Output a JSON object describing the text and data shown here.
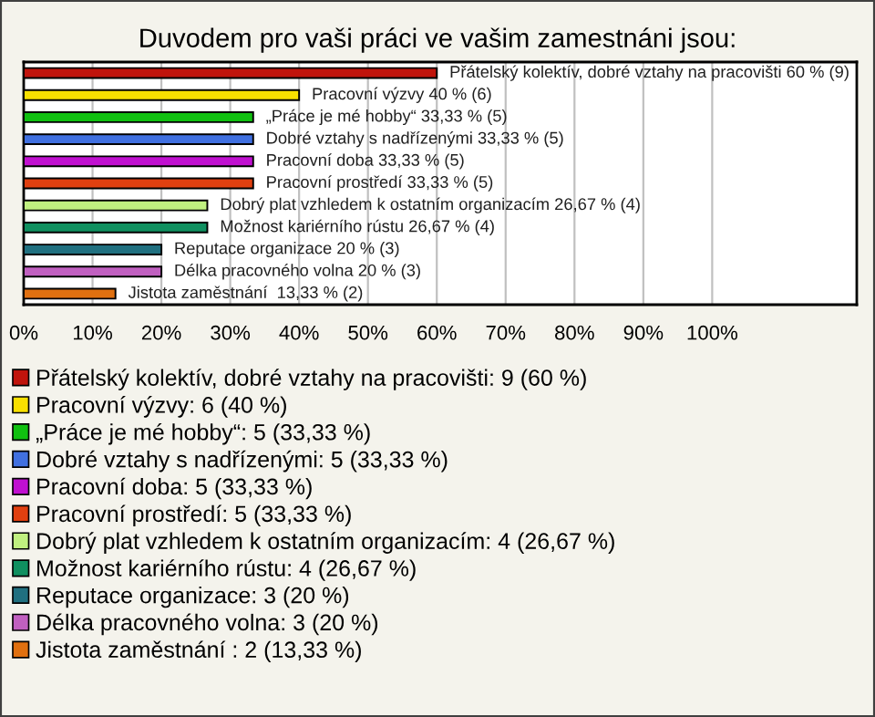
{
  "chart_data": {
    "type": "bar",
    "orientation": "horizontal",
    "title": "Duvodem pro vaši práci ve vašim zamestnáni jsou:",
    "categories": [
      null,
      null,
      null,
      null,
      null,
      null,
      null,
      null,
      null,
      null,
      null
    ],
    "series": [
      {
        "name": "Přátelský kolektív, dobré vztahy na pracovišti: 9 (60 %)",
        "color": "#c0140c",
        "values": [
          60,
          null,
          null,
          null,
          null,
          null,
          null,
          null,
          null,
          null,
          null
        ],
        "value_labels": [
          "Přátelský kolektív, dobré vztahy na pracovišti 60 % (9)",
          null,
          null,
          null,
          null,
          null,
          null,
          null,
          null,
          null,
          null
        ]
      },
      {
        "name": "Pracovní výzvy: 6 (40 %)",
        "color": "#f8e000",
        "values": [
          null,
          40,
          null,
          null,
          null,
          null,
          null,
          null,
          null,
          null,
          null
        ],
        "value_labels": [
          null,
          "Pracovní výzvy 40 % (6)",
          null,
          null,
          null,
          null,
          null,
          null,
          null,
          null,
          null
        ]
      },
      {
        "name": "„Práce je mé hobby“: 5 (33,33 %)",
        "color": "#10c010",
        "values": [
          null,
          null,
          33.33,
          null,
          null,
          null,
          null,
          null,
          null,
          null,
          null
        ],
        "value_labels": [
          null,
          null,
          "„Práce je mé hobby“ 33,33 % (5)",
          null,
          null,
          null,
          null,
          null,
          null,
          null,
          null
        ]
      },
      {
        "name": "Dobré vztahy s nadřízenými: 5 (33,33 %)",
        "color": "#4070e0",
        "values": [
          null,
          null,
          null,
          33.33,
          null,
          null,
          null,
          null,
          null,
          null,
          null
        ],
        "value_labels": [
          null,
          null,
          null,
          "Dobré vztahy s nadřízenými 33,33 % (5)",
          null,
          null,
          null,
          null,
          null,
          null,
          null
        ]
      },
      {
        "name": "Pracovní doba: 5 (33,33 %)",
        "color": "#c010d0",
        "values": [
          null,
          null,
          null,
          null,
          33.33,
          null,
          null,
          null,
          null,
          null,
          null
        ],
        "value_labels": [
          null,
          null,
          null,
          null,
          "Pracovní doba 33,33 % (5)",
          null,
          null,
          null,
          null,
          null,
          null
        ]
      },
      {
        "name": "Pracovní prostředí: 5 (33,33 %)",
        "color": "#e04010",
        "values": [
          null,
          null,
          null,
          null,
          null,
          33.33,
          null,
          null,
          null,
          null,
          null
        ],
        "value_labels": [
          null,
          null,
          null,
          null,
          null,
          "Pracovní prostředí 33,33 % (5)",
          null,
          null,
          null,
          null,
          null
        ]
      },
      {
        "name": "Dobrý plat vzhledem k ostatním organizacím: 4 (26,67 %)",
        "color": "#c0f080",
        "values": [
          null,
          null,
          null,
          null,
          null,
          null,
          26.67,
          null,
          null,
          null,
          null
        ],
        "value_labels": [
          null,
          null,
          null,
          null,
          null,
          null,
          "Dobrý plat vzhledem k ostatním organizacím 26,67 % (4)",
          null,
          null,
          null,
          null
        ]
      },
      {
        "name": "Možnost kariérního rústu: 4 (26,67 %)",
        "color": "#109060",
        "values": [
          null,
          null,
          null,
          null,
          null,
          null,
          null,
          26.67,
          null,
          null,
          null
        ],
        "value_labels": [
          null,
          null,
          null,
          null,
          null,
          null,
          null,
          "Možnost kariérního rústu 26,67 % (4)",
          null,
          null,
          null
        ]
      },
      {
        "name": "Reputace organizace: 3 (20 %)",
        "color": "#207080",
        "values": [
          null,
          null,
          null,
          null,
          null,
          null,
          null,
          null,
          20,
          null,
          null
        ],
        "value_labels": [
          null,
          null,
          null,
          null,
          null,
          null,
          null,
          null,
          "Reputace organizace 20 % (3)",
          null,
          null
        ]
      },
      {
        "name": "Délka pracovného volna: 3 (20 %)",
        "color": "#c060c0",
        "values": [
          null,
          null,
          null,
          null,
          null,
          null,
          null,
          null,
          null,
          20,
          null
        ],
        "value_labels": [
          null,
          null,
          null,
          null,
          null,
          null,
          null,
          null,
          null,
          "Délka pracovného volna 20 % (3)",
          null
        ]
      },
      {
        "name": "Jistota zaměstnání : 2 (13,33 %)",
        "color": "#e07010",
        "values": [
          null,
          null,
          null,
          null,
          null,
          null,
          null,
          null,
          null,
          null,
          13.33
        ],
        "value_labels": [
          null,
          null,
          null,
          null,
          null,
          null,
          null,
          null,
          null,
          null,
          "Jistota zaměstnání  13,33 % (2)"
        ]
      }
    ],
    "xlim": [
      0,
      121
    ],
    "xticks": [
      {
        "value": 0,
        "label": "0%"
      },
      {
        "value": 10,
        "label": "10%"
      },
      {
        "value": 20,
        "label": "20%"
      },
      {
        "value": 30,
        "label": "30%"
      },
      {
        "value": 40,
        "label": "40%"
      },
      {
        "value": 50,
        "label": "50%"
      },
      {
        "value": 60,
        "label": "60%"
      },
      {
        "value": 70,
        "label": "70%"
      },
      {
        "value": 80,
        "label": "80%"
      },
      {
        "value": 90,
        "label": "90%"
      },
      {
        "value": 100,
        "label": "100%"
      }
    ],
    "grid": "x",
    "legend": "bottom"
  }
}
